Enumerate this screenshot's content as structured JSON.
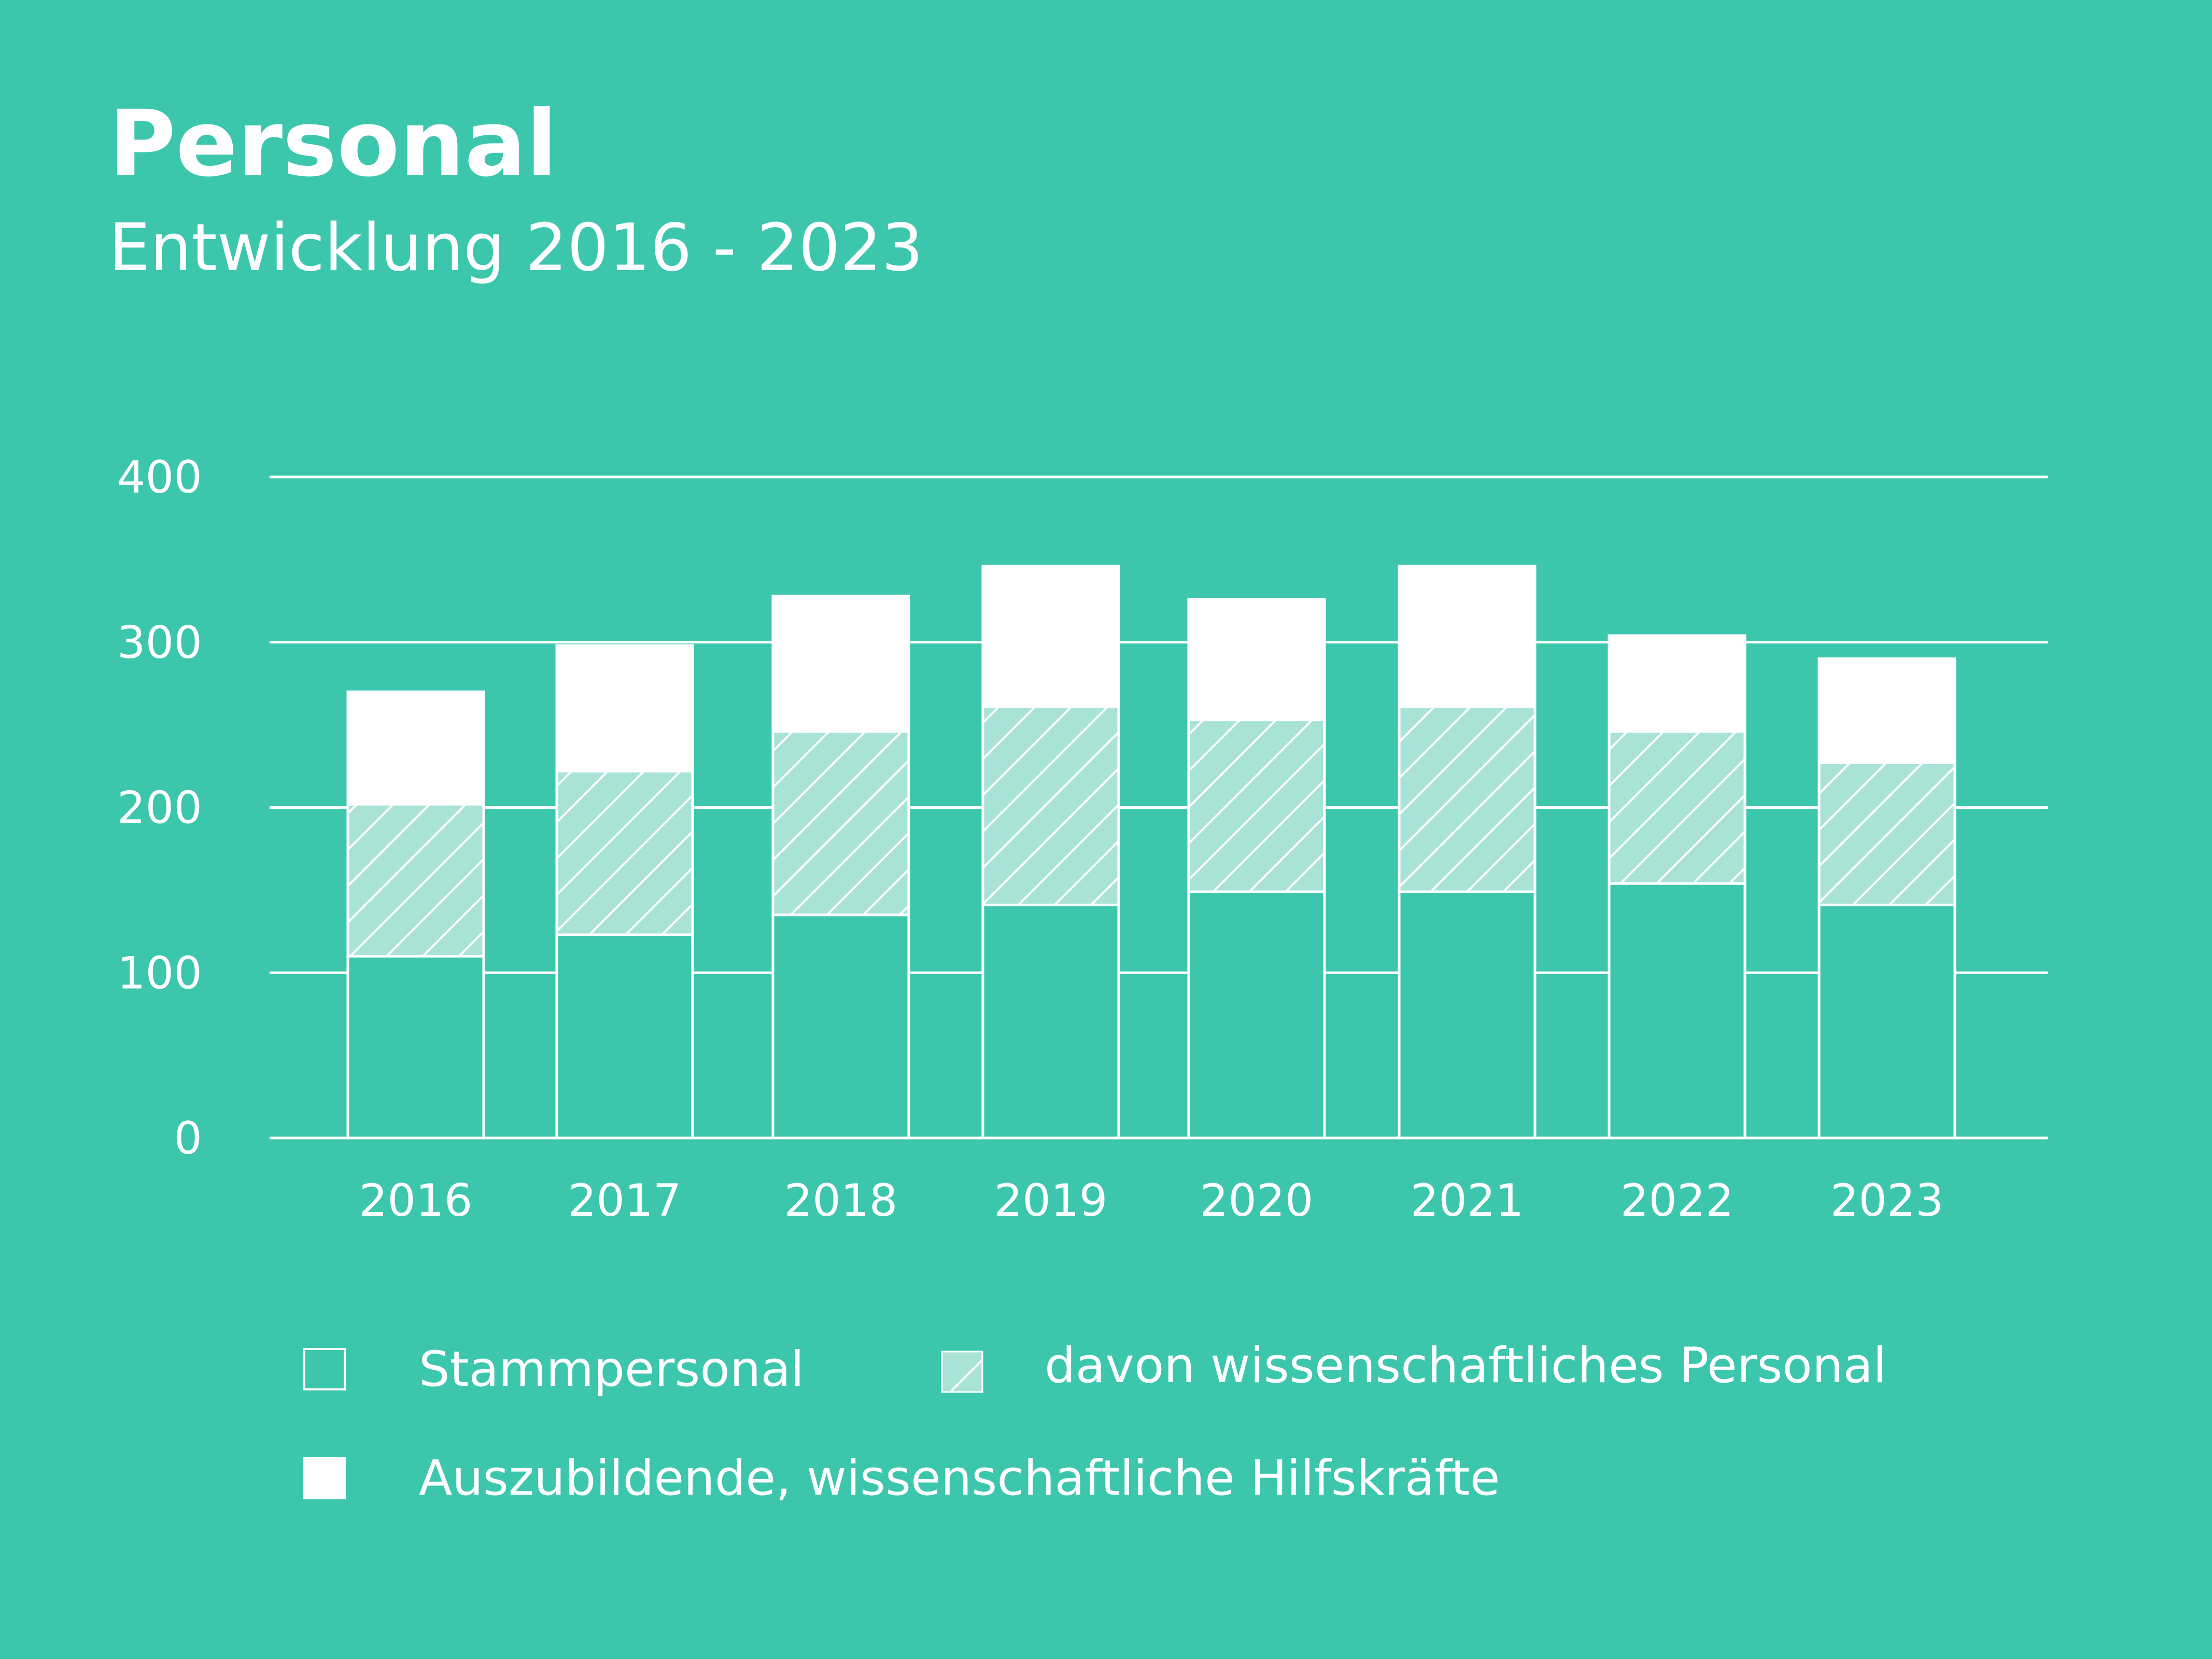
{
  "header": {
    "title": "Personal",
    "subtitle": "Entwicklung 2016 - 2023"
  },
  "colors": {
    "background": "#3cc7ad",
    "stamm_fill": "#3cc7ad",
    "wiss_fill": "#a8e3d6",
    "azubi_fill": "#ffffff",
    "line": "#ffffff"
  },
  "legend": {
    "stamm": "Stammpersonal",
    "wiss": "davon wissenschaftliches Personal",
    "azubi": "Auszubildende, wissenschaftliche Hilfskräfte"
  },
  "chart_data": {
    "type": "bar",
    "stacked": true,
    "title": "Personal",
    "subtitle": "Entwicklung 2016 - 2023",
    "categories": [
      "2016",
      "2017",
      "2018",
      "2019",
      "2020",
      "2021",
      "2022",
      "2023"
    ],
    "ylim": [
      0,
      400
    ],
    "yticks": [
      0,
      100,
      200,
      300,
      400
    ],
    "grid": true,
    "legend_position": "bottom",
    "series": [
      {
        "name": "Stammpersonal",
        "values": [
          110,
          123,
          135,
          141,
          149,
          149,
          154,
          141
        ]
      },
      {
        "name": "davon wissenschaftliches Personal",
        "values": [
          92,
          99,
          111,
          120,
          104,
          112,
          92,
          86
        ]
      },
      {
        "name": "Auszubildende, wissenschaftliche Hilfskräfte",
        "values": [
          68,
          76,
          82,
          85,
          73,
          85,
          58,
          63
        ]
      }
    ]
  }
}
